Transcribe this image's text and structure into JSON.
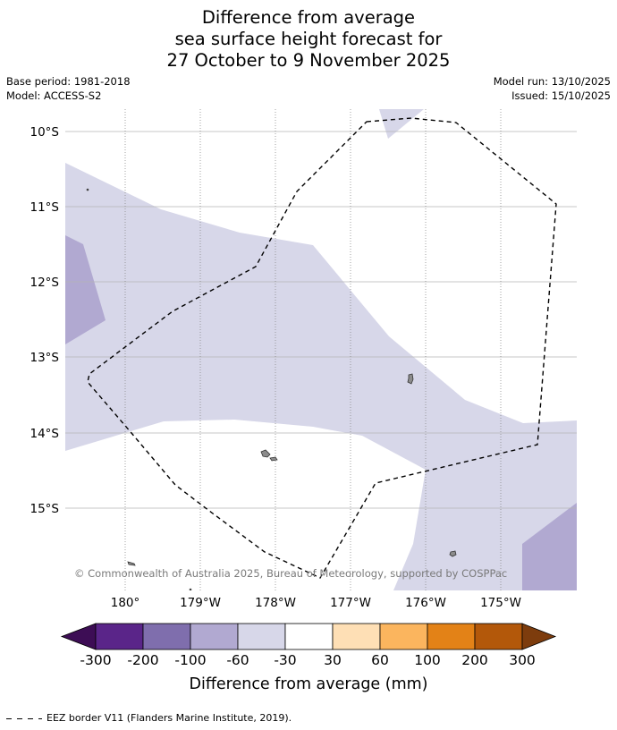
{
  "title": {
    "line1": "Difference from average",
    "line2": "sea surface height forecast for",
    "line3": "27 October to 9 November 2025"
  },
  "meta": {
    "base_period": "Base period: 1981-2018",
    "model": "Model: ACCESS-S2",
    "model_run": "Model run: 13/10/2025",
    "issued": "Issued: 15/10/2025"
  },
  "map": {
    "lat_labels": [
      "10°S",
      "11°S",
      "12°S",
      "13°S",
      "14°S",
      "15°S"
    ],
    "lon_labels": [
      "180°",
      "179°W",
      "178°W",
      "177°W",
      "176°W",
      "175°W"
    ],
    "copyright": "© Commonwealth of Australia 2025, Bureau of Meteorology, supported by COSPPac"
  },
  "colorbar": {
    "label": "Difference from average (mm)",
    "ticks": [
      "-300",
      "-200",
      "-100",
      "-60",
      "-30",
      "30",
      "60",
      "100",
      "200",
      "300"
    ],
    "colors": {
      "below_-300": "#3d0d55",
      "-300_-200": "#5a2589",
      "-200_-100": "#7f6ead",
      "-100_-60": "#b1a9d1",
      "-60_-30": "#d7d7e9",
      "-30_30": "#ffffff",
      "30_60": "#fedfb5",
      "60_100": "#fbb55e",
      "100_200": "#e38217",
      "200_300": "#b3580a",
      "above_300": "#7d3c0d"
    }
  },
  "legend": {
    "eez": "EEZ border V11 (Flanders Marine Institute, 2019)."
  }
}
